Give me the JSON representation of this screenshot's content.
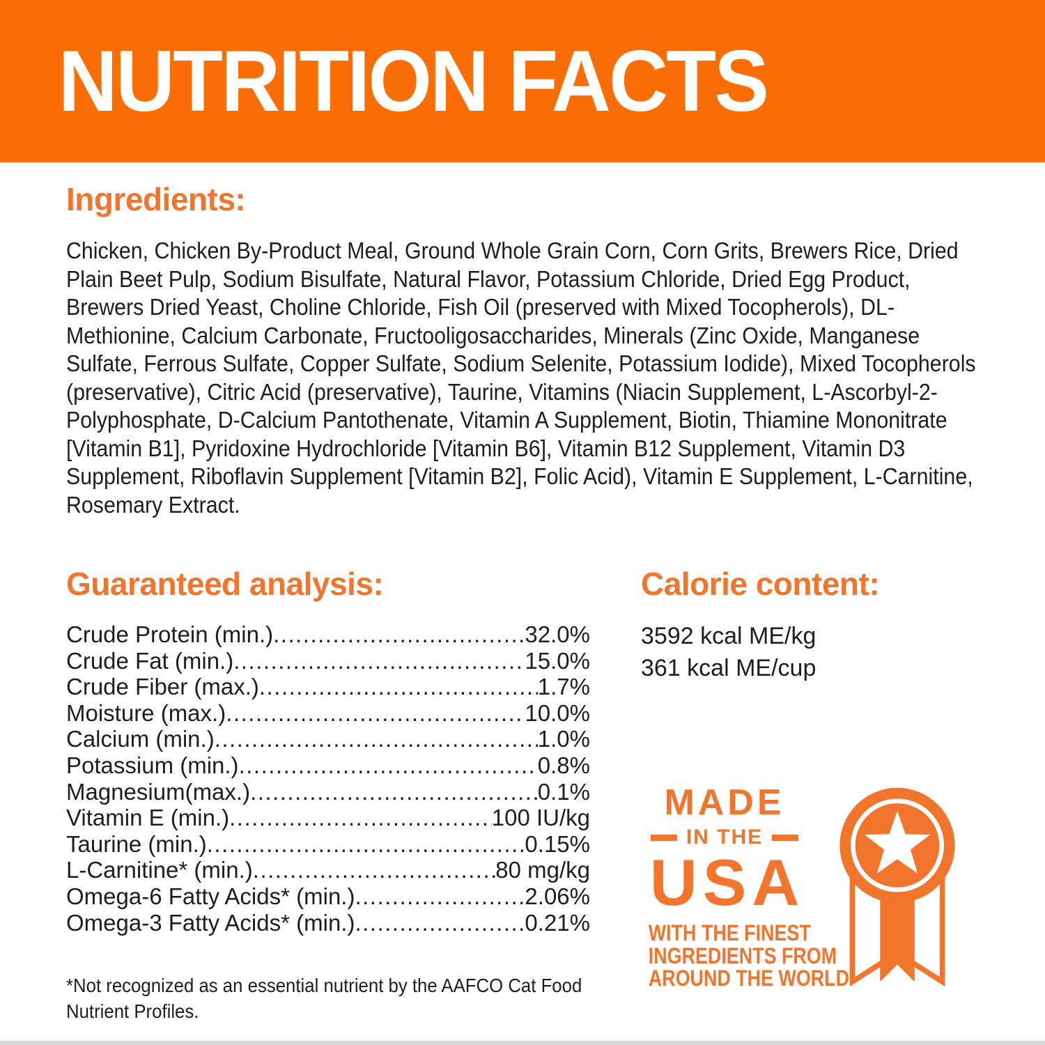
{
  "colors": {
    "banner_orange": "#fb6e05",
    "accent_orange": "#f1752d",
    "text_dark": "#201d1c",
    "bottom_strip_gray": "#d9d9d9",
    "title_white": "#ffffff"
  },
  "banner": {
    "title": "NUTRITION FACTS"
  },
  "ingredients": {
    "heading": "Ingredients:",
    "body": "Chicken, Chicken By-Product Meal, Ground Whole Grain Corn, Corn Grits, Brewers Rice, Dried Plain Beet Pulp, Sodium Bisulfate, Natural Flavor, Potassium Chloride, Dried Egg Product, Brewers Dried Yeast, Choline Chloride, Fish Oil (preserved with Mixed Tocopherols), DL-Methionine, Calcium Carbonate, Fructooligosaccharides, Minerals (Zinc Oxide, Manganese Sulfate, Ferrous Sulfate, Copper Sulfate, Sodium Selenite, Potassium Iodide), Mixed Tocopherols (preservative), Citric Acid (preservative), Taurine, Vitamins (Niacin Supplement, L-Ascorbyl-2-Polyphosphate, D-Calcium Pantothenate, Vitamin A Supplement, Biotin, Thiamine Mononitrate [Vitamin B1], Pyridoxine Hydrochloride [Vitamin B6], Vitamin B12 Supplement, Vitamin D3 Supplement, Riboflavin Supplement [Vitamin B2], Folic Acid), Vitamin E Supplement, L-Carnitine, Rosemary Extract."
  },
  "guaranteed_analysis": {
    "heading": "Guaranteed analysis:",
    "rows": [
      {
        "label": "Crude Protein (min.)",
        "value": "32.0%"
      },
      {
        "label": "Crude Fat (min.)",
        "value": "15.0%"
      },
      {
        "label": "Crude Fiber (max.)",
        "value": "1.7%"
      },
      {
        "label": "Moisture (max.)",
        "value": "10.0%"
      },
      {
        "label": "Calcium (min.)",
        "value": "1.0%"
      },
      {
        "label": "Potassium (min.)",
        "value": "0.8%"
      },
      {
        "label": "Magnesium(max.)",
        "value": "0.1%"
      },
      {
        "label": "Vitamin E (min.)",
        "value": "100 IU/kg"
      },
      {
        "label": "Taurine (min.)",
        "value": "0.15%"
      },
      {
        "label": "L-Carnitine* (min.)",
        "value": "80 mg/kg"
      },
      {
        "label": "Omega-6 Fatty Acids* (min.)",
        "value": "2.06%"
      },
      {
        "label": "Omega-3 Fatty Acids* (min.)",
        "value": "0.21%"
      }
    ]
  },
  "calorie_content": {
    "heading": "Calorie content:",
    "lines": [
      "3592 kcal ME/kg",
      "361 kcal ME/cup"
    ]
  },
  "made_in_usa": {
    "line_made": "MADE",
    "line_in_the": "IN THE",
    "line_usa": "USA",
    "tagline": [
      "WITH THE FINEST",
      "INGREDIENTS FROM",
      "AROUND THE WORLD"
    ],
    "badge_icon": "award-ribbon-star-icon"
  },
  "footnote": "*Not recognized as an essential nutrient by the AAFCO Cat Food Nutrient Profiles."
}
